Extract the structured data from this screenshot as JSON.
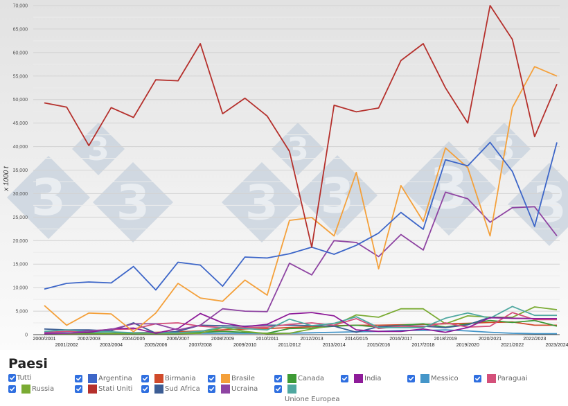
{
  "chart_data": {
    "type": "line",
    "title": "",
    "xlabel": "",
    "ylabel": "x 1000 t",
    "ylim": [
      0,
      70000
    ],
    "yticks": [
      0,
      5000,
      10000,
      15000,
      20000,
      25000,
      30000,
      35000,
      40000,
      45000,
      50000,
      55000,
      60000,
      65000,
      70000
    ],
    "ytick_labels": [
      "0",
      "5,000",
      "10,000",
      "15,000",
      "20,000",
      "25,000",
      "30,000",
      "35,000",
      "40,000",
      "45,000",
      "50,000",
      "55,000",
      "60,000",
      "65,000",
      "70,000"
    ],
    "grid": true,
    "legend_position": "bottom",
    "categories": [
      "2000/2001",
      "2001/2002",
      "2002/2003",
      "2003/2004",
      "2004/2005",
      "2005/2006",
      "2006/2007",
      "2007/2008",
      "2008/2009",
      "2009/2010",
      "2010/2011",
      "2011/2012",
      "2012/2013",
      "2013/2014",
      "2014/2015",
      "2015/2016",
      "2016/2017",
      "2017/2018",
      "2018/2019",
      "2019/2020",
      "2020/2021",
      "2021/2022",
      "2022/2023",
      "2023/2024"
    ],
    "series": [
      {
        "name": "Argentina",
        "color": "#3d66c8",
        "values": [
          9700,
          10900,
          11200,
          11000,
          14500,
          9500,
          15400,
          14800,
          10300,
          16500,
          16300,
          17200,
          18600,
          17100,
          19000,
          21600,
          26000,
          22400,
          37200,
          35900,
          40900,
          34700,
          23000,
          40900
        ]
      },
      {
        "name": "Birmania",
        "color": "#d04a2a",
        "values": [
          100,
          100,
          200,
          300,
          400,
          500,
          600,
          800,
          1000,
          1200,
          1300,
          1500,
          1700,
          1900,
          2000,
          2000,
          2100,
          2200,
          2300,
          2400,
          2600,
          2700,
          2000,
          2000
        ]
      },
      {
        "name": "Brasile",
        "color": "#f4a03a",
        "values": [
          6200,
          2000,
          4600,
          4400,
          600,
          4600,
          10900,
          7800,
          7100,
          11600,
          8400,
          24300,
          24900,
          21000,
          34500,
          14000,
          31700,
          24100,
          39700,
          35500,
          21000,
          48300,
          57000,
          55000
        ]
      },
      {
        "name": "Canada",
        "color": "#3d9a35",
        "values": [
          300,
          300,
          300,
          300,
          300,
          300,
          300,
          500,
          700,
          500,
          300,
          1300,
          1400,
          1800,
          2000,
          1600,
          2000,
          2300,
          1600,
          2300,
          3000,
          2600,
          3000,
          1800
        ]
      },
      {
        "name": "India",
        "color": "#8e1c99",
        "values": [
          200,
          300,
          500,
          1200,
          1400,
          300,
          1300,
          4500,
          2500,
          1700,
          2200,
          4400,
          4700,
          4000,
          1000,
          700,
          700,
          1200,
          500,
          1500,
          3600,
          3500,
          3400,
          3400
        ]
      },
      {
        "name": "Messico",
        "color": "#4596c9",
        "values": [
          500,
          400,
          400,
          300,
          300,
          300,
          300,
          300,
          300,
          300,
          300,
          300,
          400,
          500,
          600,
          700,
          900,
          900,
          1000,
          800,
          500,
          300,
          200,
          200
        ]
      },
      {
        "name": "Paraguai",
        "color": "#d4507a",
        "values": [
          500,
          700,
          800,
          1100,
          1200,
          2300,
          2500,
          1800,
          1500,
          1500,
          1600,
          2200,
          2500,
          2000,
          3400,
          1300,
          1800,
          1700,
          2500,
          1600,
          1800,
          4700,
          3200,
          3200
        ]
      },
      {
        "name": "Russia",
        "color": "#7aab33",
        "values": [
          100,
          100,
          100,
          200,
          100,
          200,
          200,
          300,
          1500,
          700,
          200,
          300,
          1200,
          2000,
          4200,
          3700,
          5500,
          5500,
          2300,
          4000,
          3700,
          3700,
          5900,
          5300
        ]
      },
      {
        "name": "Stati Uniti",
        "color": "#b5302c",
        "values": [
          49300,
          48400,
          40200,
          48300,
          46200,
          54200,
          54000,
          61900,
          47000,
          50300,
          46500,
          39000,
          18600,
          48800,
          47400,
          48200,
          58300,
          61900,
          52500,
          45000,
          70000,
          62800,
          42100,
          53300
        ]
      },
      {
        "name": "Sud Africa",
        "color": "#3c5d94",
        "values": [
          1200,
          1000,
          1000,
          800,
          2500,
          300,
          700,
          2000,
          1900,
          1800,
          2000,
          2000,
          1900,
          1800,
          500,
          1700,
          1900,
          1800,
          1500,
          2100,
          3700,
          3500,
          3400,
          3300
        ]
      },
      {
        "name": "Ucraina",
        "color": "#8e44a2",
        "values": [
          400,
          300,
          800,
          1100,
          2300,
          2300,
          1000,
          2000,
          5500,
          5000,
          4900,
          15200,
          12700,
          20000,
          19600,
          16600,
          21300,
          18000,
          30300,
          28900,
          23900,
          27000,
          27200,
          21000
        ]
      },
      {
        "name": "Unione Europea",
        "color": "#4fa8a0",
        "values": [
          700,
          1000,
          700,
          600,
          400,
          400,
          400,
          700,
          1600,
          1300,
          1000,
          3300,
          1900,
          2400,
          3800,
          1500,
          1500,
          1500,
          3500,
          4600,
          3500,
          6000,
          4100,
          4100
        ]
      }
    ]
  },
  "legend": {
    "title": "Paesi",
    "items": [
      {
        "label": "Tutti",
        "checked": true,
        "color": ""
      },
      {
        "label": "Argentina",
        "checked": true,
        "color": "#3d66c8"
      },
      {
        "label": "Birmania",
        "checked": true,
        "color": "#d04a2a"
      },
      {
        "label": "Brasile",
        "checked": true,
        "color": "#f4a03a"
      },
      {
        "label": "Canada",
        "checked": true,
        "color": "#3d9a35"
      },
      {
        "label": "India",
        "checked": true,
        "color": "#8e1c99"
      },
      {
        "label": "Messico",
        "checked": true,
        "color": "#4596c9"
      },
      {
        "label": "Paraguai",
        "checked": true,
        "color": "#d4507a"
      },
      {
        "label": "Russia",
        "checked": true,
        "color": "#7aab33"
      },
      {
        "label": "Stati Uniti",
        "checked": true,
        "color": "#b5302c"
      },
      {
        "label": "Sud Africa",
        "checked": true,
        "color": "#3c5d94"
      },
      {
        "label": "Ucraina",
        "checked": true,
        "color": "#8e44a2"
      },
      {
        "label": "Unione Europea",
        "checked": true,
        "color": "#4fa8a0"
      }
    ]
  },
  "watermark": {
    "glyph": "3",
    "color": "#c3cfdc"
  }
}
